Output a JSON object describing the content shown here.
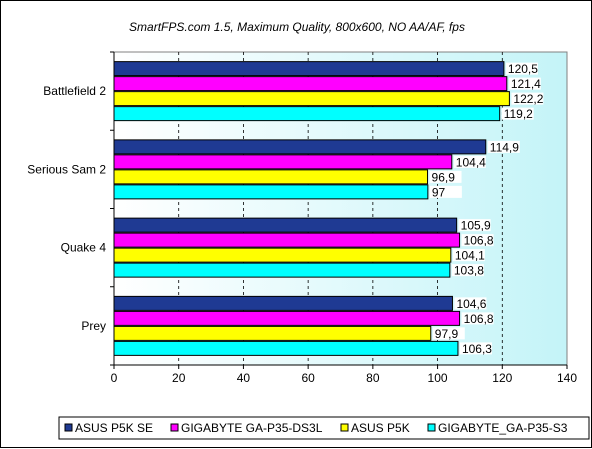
{
  "chart_data": {
    "type": "bar",
    "orientation": "horizontal",
    "title": "SmartFPS.com 1.5, Maximum Quality, 800x600, NO AA/AF, fps",
    "xlabel": "",
    "ylabel": "",
    "xlim": [
      0,
      140
    ],
    "x_ticks": [
      "0",
      "20",
      "40",
      "60",
      "80",
      "100",
      "120",
      "140"
    ],
    "grid": "vertical dashed",
    "legend_position": "bottom",
    "categories": [
      "Battlefield 2",
      "Serious Sam 2",
      "Quake 4",
      "Prey"
    ],
    "series": [
      {
        "name": "ASUS P5K SE",
        "color": "#1f3a93",
        "values": [
          120.5,
          114.9,
          105.9,
          104.6
        ],
        "labels": [
          "120,5",
          "114,9",
          "105,9",
          "104,6"
        ]
      },
      {
        "name": "GIGABYTE GA-P35-DS3L",
        "color": "#ff00ff",
        "values": [
          121.4,
          104.4,
          106.8,
          106.8
        ],
        "labels": [
          "121,4",
          "104,4",
          "106,8",
          "106,8"
        ]
      },
      {
        "name": "ASUS P5K",
        "color": "#ffff00",
        "values": [
          122.2,
          96.9,
          104.1,
          97.9
        ],
        "labels": [
          "122,2",
          "96,9",
          "104,1",
          "97,9"
        ]
      },
      {
        "name": "GIGABYTE_GA-P35-S3",
        "color": "#00ffff",
        "values": [
          119.2,
          97.0,
          103.8,
          106.3
        ],
        "labels": [
          "119,2",
          "97",
          "103,8",
          "106,3"
        ]
      }
    ]
  }
}
